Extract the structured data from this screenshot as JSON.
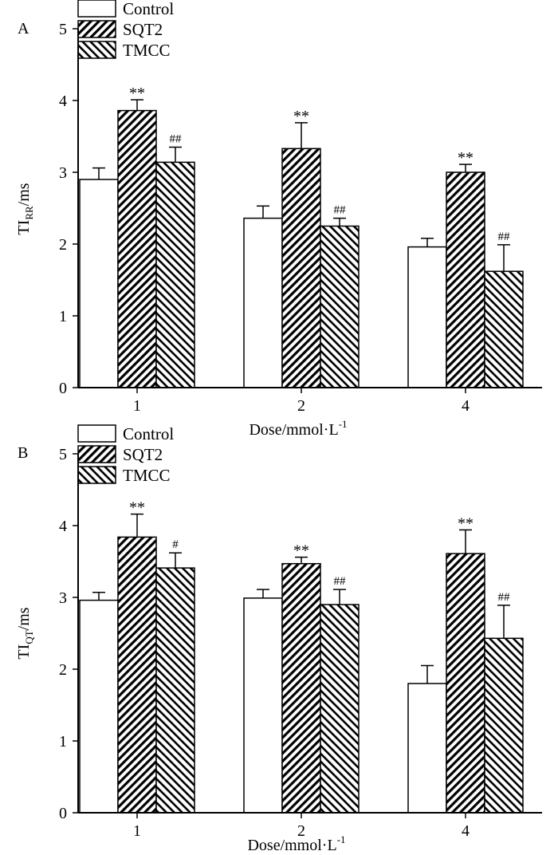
{
  "chart_data": [
    {
      "type": "bar",
      "panel": "A",
      "categories": [
        "1",
        "2",
        "4"
      ],
      "series": [
        {
          "name": "Control",
          "values": [
            2.9,
            2.36,
            1.96
          ],
          "errors": [
            0.16,
            0.17,
            0.12
          ],
          "marks": [
            "",
            "",
            ""
          ]
        },
        {
          "name": "SQT2",
          "values": [
            3.86,
            3.33,
            3.0
          ],
          "errors": [
            0.15,
            0.36,
            0.11
          ],
          "marks": [
            "**",
            "**",
            "**"
          ]
        },
        {
          "name": "TMCC",
          "values": [
            3.14,
            2.25,
            1.62
          ],
          "errors": [
            0.21,
            0.11,
            0.37
          ],
          "marks": [
            "##",
            "##",
            "##"
          ]
        }
      ],
      "ylabel_main": "TI",
      "ylabel_sub": "RR",
      "ylabel_tail": "/ms",
      "xlabel_main": "Dose/mmol·L",
      "xlabel_sup": "-1",
      "ylim": [
        0,
        5
      ],
      "yticks": [
        "0",
        "1",
        "2",
        "3",
        "4",
        "5"
      ]
    },
    {
      "type": "bar",
      "panel": "B",
      "categories": [
        "1",
        "2",
        "4"
      ],
      "series": [
        {
          "name": "Control",
          "values": [
            2.96,
            2.99,
            1.8
          ],
          "errors": [
            0.11,
            0.12,
            0.25
          ],
          "marks": [
            "",
            "",
            ""
          ]
        },
        {
          "name": "SQT2",
          "values": [
            3.84,
            3.47,
            3.61
          ],
          "errors": [
            0.32,
            0.09,
            0.33
          ],
          "marks": [
            "**",
            "**",
            "**"
          ]
        },
        {
          "name": "TMCC",
          "values": [
            3.41,
            2.9,
            2.43
          ],
          "errors": [
            0.21,
            0.21,
            0.46
          ],
          "marks": [
            "#",
            "##",
            "##"
          ]
        }
      ],
      "ylabel_main": "TI",
      "ylabel_sub": "QT",
      "ylabel_tail": "/ms",
      "xlabel_main": "Dose/mmol·L",
      "xlabel_sup": "-1",
      "ylim": [
        0,
        5
      ],
      "yticks": [
        "0",
        "1",
        "2",
        "3",
        "4",
        "5"
      ]
    }
  ]
}
